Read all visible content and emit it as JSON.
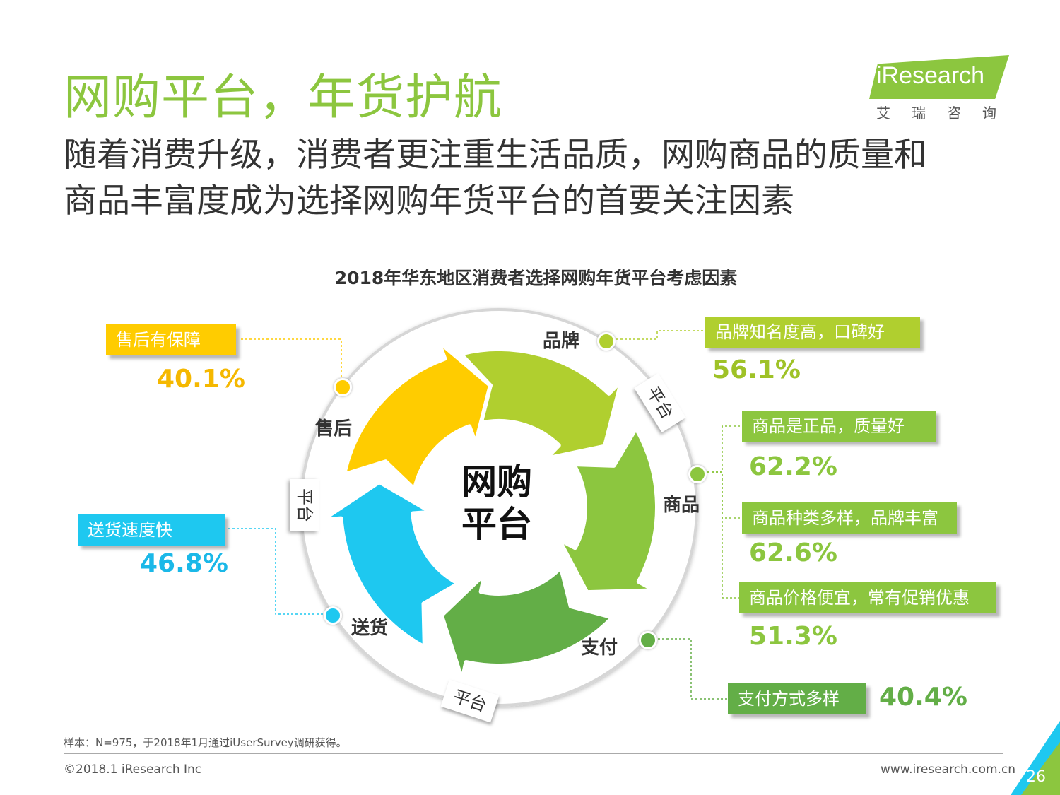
{
  "header": {
    "title": "网购平台，年货护航",
    "subtitle_line1": "随着消费升级，消费者更注重生活品质，网购商品的质量和",
    "subtitle_line2": "商品丰富度成为选择网购年货平台的首要关注因素"
  },
  "logo": {
    "wordmark": "iResearch",
    "chinese": "艾瑞咨询",
    "color": "#8cc63f"
  },
  "chart_data": {
    "type": "diagram",
    "title": "2018年华东地区消费者选择网购年货平台考虑因素",
    "center_label_line1": "网购",
    "center_label_line2": "平台",
    "segments": [
      {
        "name": "品牌",
        "color": "#b0cf2f"
      },
      {
        "name": "商品",
        "color": "#8cc63f"
      },
      {
        "name": "支付",
        "color": "#63ae47"
      },
      {
        "name": "送货",
        "color": "#1ec8f0"
      },
      {
        "name": "售后",
        "color": "#ffcc00"
      }
    ],
    "ring_tags": [
      "平台",
      "平台",
      "平台"
    ],
    "factors": [
      {
        "group": "售后",
        "label": "售后有保障",
        "value": "40.1%",
        "color": "#ffcc00",
        "pct_color": "#f5b800"
      },
      {
        "group": "品牌",
        "label": "品牌知名度高，口碑好",
        "value": "56.1%",
        "color": "#b0cf2f",
        "pct_color": "#9fc227"
      },
      {
        "group": "商品",
        "label": "商品是正品，质量好",
        "value": "62.2%",
        "color": "#8cc63f",
        "pct_color": "#8cc63f"
      },
      {
        "group": "商品",
        "label": "商品种类多样，品牌丰富",
        "value": "62.6%",
        "color": "#8cc63f",
        "pct_color": "#8cc63f"
      },
      {
        "group": "商品",
        "label": "商品价格便宜，常有促销优惠",
        "value": "51.3%",
        "color": "#8cc63f",
        "pct_color": "#8cc63f"
      },
      {
        "group": "送货",
        "label": "送货速度快",
        "value": "46.8%",
        "color": "#1ec8f0",
        "pct_color": "#1ab8e8"
      },
      {
        "group": "支付",
        "label": "支付方式多样",
        "value": "40.4%",
        "color": "#63ae47",
        "pct_color": "#63ae47"
      }
    ]
  },
  "footer": {
    "footnote": "样本：N=975，于2018年1月通过iUserSurvey调研获得。",
    "copyright": "©2018.1 iResearch Inc",
    "website": "www.iresearch.com.cn",
    "page_number": "26"
  }
}
